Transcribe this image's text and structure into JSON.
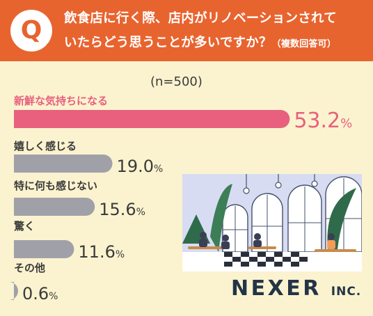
{
  "question": {
    "mark": "Q",
    "line1": "飲食店に行く際、店内がリノベーションされて",
    "line2": "いたらどう思うことが多いですか？",
    "note": "（複数回答可）"
  },
  "sample_size": "(n=500)",
  "brand": {
    "name": "NEXER",
    "suffix": "INC."
  },
  "colors": {
    "header": "#e8642f",
    "highlight": "#e8607e",
    "bar": "#a0a1a8",
    "background": "#fbf3cf"
  },
  "chart_data": {
    "type": "bar",
    "orientation": "horizontal",
    "categories": [
      "新鮮な気持ちになる",
      "嬉しく感じる",
      "特に何も感じない",
      "驚く",
      "その他"
    ],
    "values": [
      53.2,
      19.0,
      15.6,
      11.6,
      0.6
    ],
    "value_labels": [
      "53.2",
      "19.0",
      "15.6",
      "11.6",
      "0.6"
    ],
    "unit": "%",
    "highlight_index": 0
  }
}
